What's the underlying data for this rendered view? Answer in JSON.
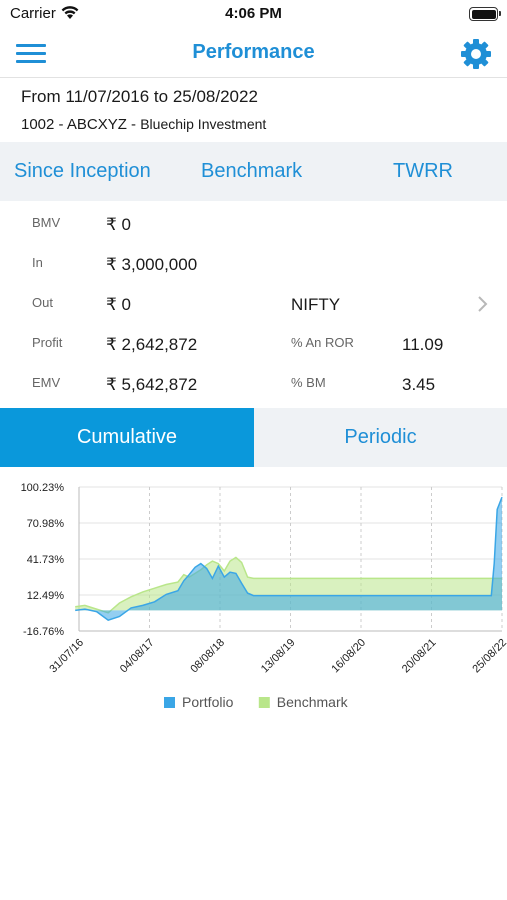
{
  "status_bar": {
    "carrier": "Carrier",
    "time": "4:06 PM"
  },
  "nav": {
    "title": "Performance",
    "menu_icon": "hamburger-menu-icon",
    "settings_icon": "gear-icon"
  },
  "info": {
    "date_range": "From 11/07/2016 to 25/08/2022",
    "account_code": "1002 - ABCXYZ - ",
    "account_name": "Bluechip Investment"
  },
  "tabs": [
    "Since Inception",
    "Benchmark",
    "TWRR"
  ],
  "stats": {
    "bmv_label": "BMV",
    "bmv_value": "₹ 0",
    "in_label": "In",
    "in_value": "₹ 3,000,000",
    "out_label": "Out",
    "out_value": "₹ 0",
    "profit_label": "Profit",
    "profit_value": "₹ 2,642,872",
    "emv_label": "EMV",
    "emv_value": "₹ 5,642,872",
    "benchmark_name": "NIFTY",
    "ror_label": "% An ROR",
    "ror_value": "11.09",
    "bm_label": "% BM",
    "bm_value": "3.45"
  },
  "segments": {
    "cumulative": "Cumulative",
    "periodic": "Periodic",
    "selected": "Cumulative"
  },
  "colors": {
    "accent": "#1f8fd6",
    "active_segment": "#0a98db",
    "portfolio": "#3aa6e6",
    "benchmark": "#b9e68a"
  },
  "chart_data": {
    "type": "area",
    "y_tick_labels": [
      "100.23%",
      "70.98%",
      "41.73%",
      "12.49%",
      "-16.76%"
    ],
    "ylim": [
      -16.76,
      100.23
    ],
    "x_tick_labels": [
      "31/07/16",
      "04/08/17",
      "08/08/18",
      "13/08/19",
      "16/08/20",
      "20/08/21",
      "25/08/22"
    ],
    "x_domain": [
      "2016-07-31",
      "2022-08-25"
    ],
    "grid": true,
    "legend_position": "bottom",
    "series": [
      {
        "name": "Portfolio",
        "color": "#3aa6e6",
        "points": [
          [
            "2016-07-11",
            0
          ],
          [
            "2016-08-31",
            1
          ],
          [
            "2016-10-31",
            -1
          ],
          [
            "2016-12-31",
            -8
          ],
          [
            "2017-02-28",
            -5
          ],
          [
            "2017-04-30",
            2
          ],
          [
            "2017-06-30",
            4
          ],
          [
            "2017-08-31",
            7
          ],
          [
            "2017-10-31",
            13
          ],
          [
            "2017-12-31",
            16
          ],
          [
            "2018-01-31",
            24
          ],
          [
            "2018-02-28",
            29
          ],
          [
            "2018-03-31",
            35
          ],
          [
            "2018-04-30",
            38
          ],
          [
            "2018-05-31",
            34
          ],
          [
            "2018-06-30",
            26
          ],
          [
            "2018-07-31",
            36
          ],
          [
            "2018-08-31",
            27
          ],
          [
            "2018-09-30",
            31
          ],
          [
            "2018-10-31",
            30
          ],
          [
            "2018-11-30",
            22
          ],
          [
            "2018-12-31",
            14
          ],
          [
            "2019-01-31",
            12
          ],
          [
            "2019-06-30",
            12
          ],
          [
            "2020-01-31",
            12
          ],
          [
            "2020-08-31",
            12
          ],
          [
            "2021-03-31",
            12
          ],
          [
            "2021-10-31",
            12
          ],
          [
            "2022-06-30",
            12
          ],
          [
            "2022-07-15",
            38
          ],
          [
            "2022-07-31",
            82
          ],
          [
            "2022-08-25",
            92
          ]
        ]
      },
      {
        "name": "Benchmark",
        "color": "#b9e68a",
        "points": [
          [
            "2016-07-11",
            3
          ],
          [
            "2016-08-31",
            4
          ],
          [
            "2016-10-31",
            1
          ],
          [
            "2016-12-31",
            -2
          ],
          [
            "2017-02-28",
            6
          ],
          [
            "2017-04-30",
            11
          ],
          [
            "2017-06-30",
            15
          ],
          [
            "2017-08-31",
            18
          ],
          [
            "2017-10-31",
            21
          ],
          [
            "2017-12-31",
            23
          ],
          [
            "2018-01-31",
            29
          ],
          [
            "2018-02-28",
            27
          ],
          [
            "2018-03-31",
            30
          ],
          [
            "2018-04-30",
            33
          ],
          [
            "2018-05-31",
            37
          ],
          [
            "2018-06-30",
            40
          ],
          [
            "2018-07-31",
            38
          ],
          [
            "2018-08-31",
            32
          ],
          [
            "2018-09-30",
            40
          ],
          [
            "2018-10-31",
            43
          ],
          [
            "2018-11-30",
            39
          ],
          [
            "2018-12-31",
            27
          ],
          [
            "2019-01-31",
            26
          ],
          [
            "2019-06-30",
            26
          ],
          [
            "2020-01-31",
            26
          ],
          [
            "2020-08-31",
            26
          ],
          [
            "2021-03-31",
            26
          ],
          [
            "2021-10-31",
            26
          ],
          [
            "2022-06-30",
            26
          ],
          [
            "2022-07-15",
            26
          ],
          [
            "2022-07-31",
            26
          ],
          [
            "2022-08-25",
            26
          ]
        ]
      }
    ]
  }
}
